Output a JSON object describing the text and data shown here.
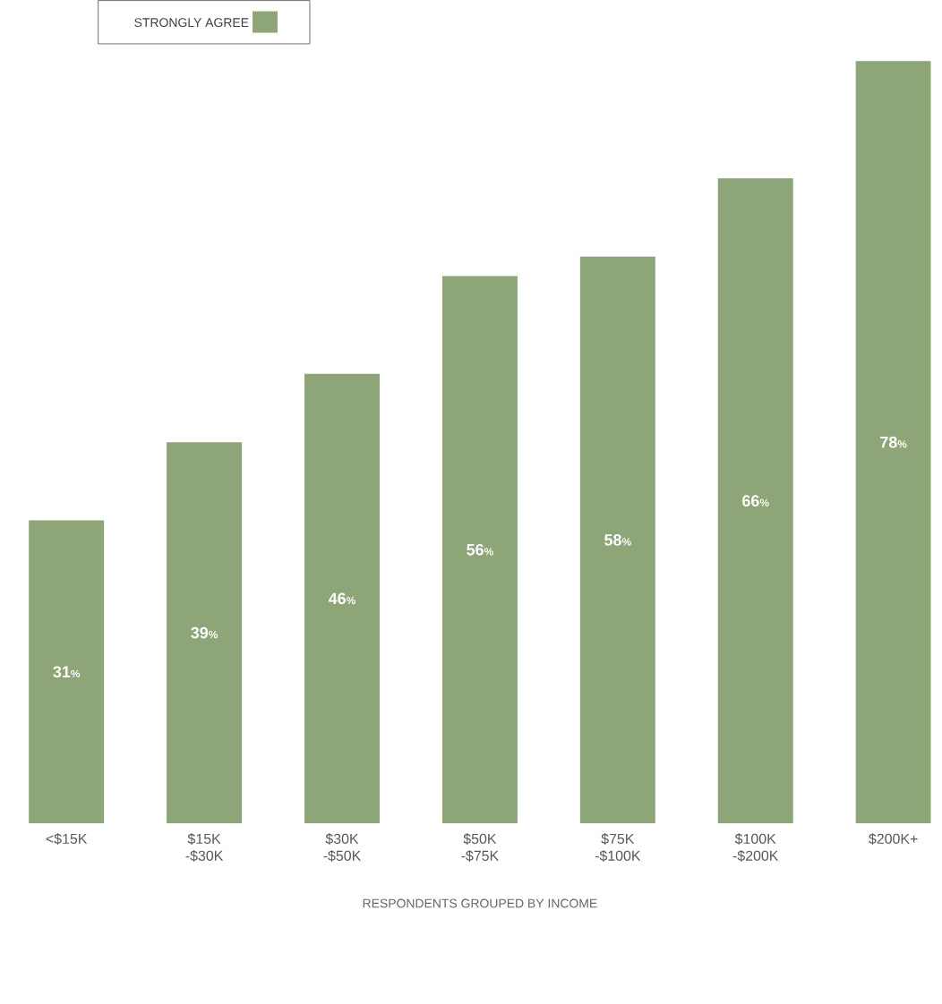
{
  "chart_data": {
    "type": "bar",
    "categories": [
      "<$15K",
      "$15K -$30K",
      "$30K -$50K",
      "$50K -$75K",
      "$75K -$100K",
      "$100K -$200K",
      "$200K+"
    ],
    "series": [
      {
        "name": "STRONGLY AGREE",
        "color": "#8da577",
        "values": [
          31,
          39,
          46,
          56,
          58,
          66,
          78
        ]
      }
    ],
    "value_labels": [
      "31%",
      "39%",
      "46%",
      "56%",
      "58%",
      "66%",
      "78%"
    ],
    "data_labels": true,
    "xlabel": "RESPONDENTS GROUPED BY INCOME",
    "legend": "top left"
  }
}
